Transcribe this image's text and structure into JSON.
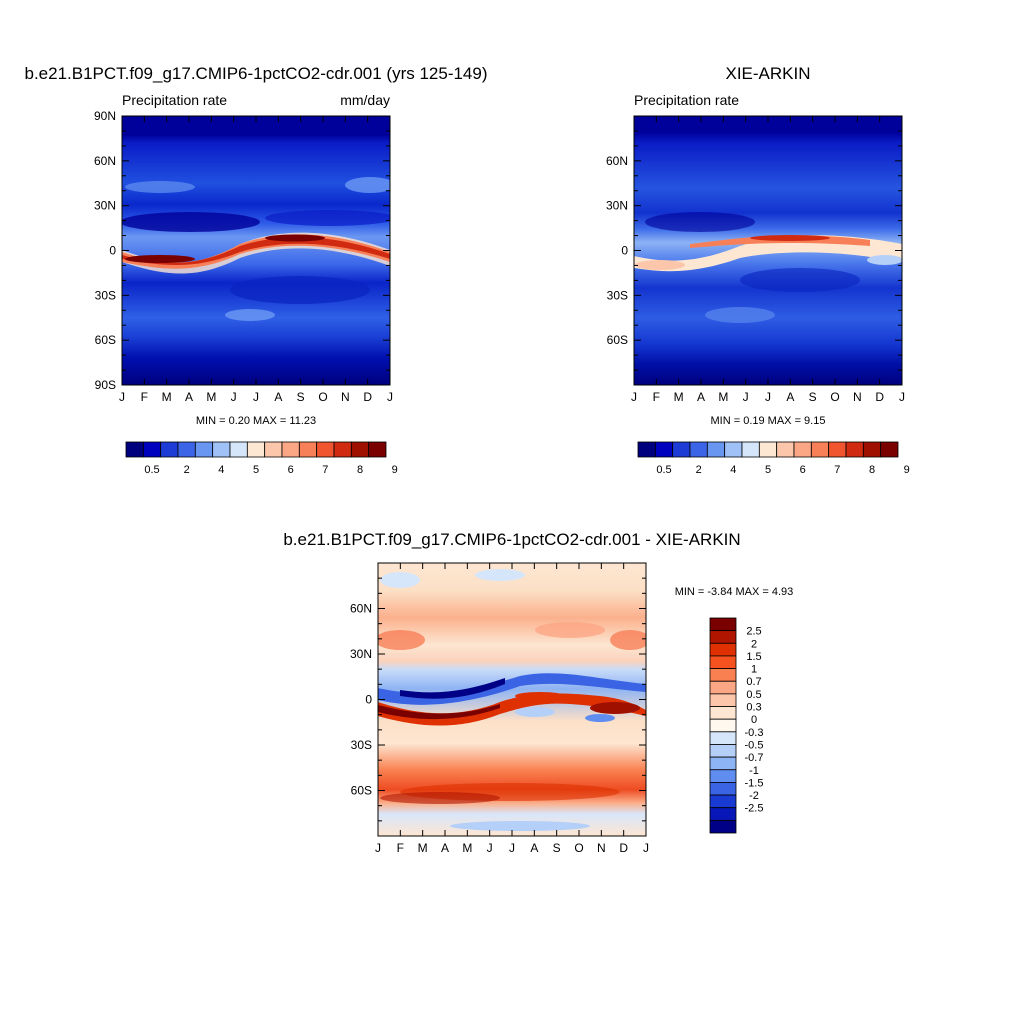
{
  "panels": [
    {
      "id": "model",
      "title": "b.e21.B1PCT.f09_g17.CMIP6-1pctCO2-cdr.001 (yrs 125-149)",
      "left_label": "Precipitation rate",
      "right_label": "mm/day",
      "stats": "MIN =   0.20 MAX =  11.23"
    },
    {
      "id": "obs",
      "title": "XIE-ARKIN",
      "left_label": "Precipitation rate",
      "right_label": "",
      "stats": "MIN =   0.19 MAX =   9.15"
    },
    {
      "id": "diff",
      "title": "b.e21.B1PCT.f09_g17.CMIP6-1pctCO2-cdr.001 - XIE-ARKIN",
      "left_label": "",
      "right_label": "",
      "stats": "MIN =  -3.84 MAX =   4.93"
    }
  ],
  "chart_data": [
    {
      "type": "heatmap",
      "panel": "model",
      "title": "b.e21.B1PCT.f09_g17.CMIP6-1pctCO2-cdr.001 (yrs 125-149)",
      "variable": "Precipitation rate",
      "units": "mm/day",
      "x_ticks": [
        "J",
        "F",
        "M",
        "A",
        "M",
        "J",
        "J",
        "A",
        "S",
        "O",
        "N",
        "D",
        "J"
      ],
      "y_ticks": [
        "90N",
        "60N",
        "30N",
        "0",
        "30S",
        "60S",
        "90S"
      ],
      "y_tick_values": [
        90,
        60,
        30,
        0,
        -30,
        -60,
        -90
      ],
      "ylim": [
        -90,
        90
      ],
      "min": 0.2,
      "max": 11.23,
      "colorbar": {
        "orientation": "horizontal",
        "tick_labels": [
          "0.5",
          "2",
          "4",
          "5",
          "6",
          "7",
          "8",
          "9"
        ],
        "colors": [
          "#00007f",
          "#0000bf",
          "#1c3cd5",
          "#3c64e6",
          "#6996f0",
          "#a0c0f8",
          "#d6e6fa",
          "#fde6d2",
          "#fcc6aa",
          "#fba684",
          "#f88058",
          "#f05530",
          "#d02a10",
          "#a01000",
          "#7a0000"
        ]
      }
    },
    {
      "type": "heatmap",
      "panel": "obs",
      "title": "XIE-ARKIN",
      "variable": "Precipitation rate",
      "x_ticks": [
        "J",
        "F",
        "M",
        "A",
        "M",
        "J",
        "J",
        "A",
        "S",
        "O",
        "N",
        "D",
        "J"
      ],
      "y_ticks": [
        "60N",
        "30N",
        "0",
        "30S",
        "60S"
      ],
      "y_tick_values": [
        60,
        30,
        0,
        -30,
        -60
      ],
      "ylim": [
        -90,
        90
      ],
      "min": 0.19,
      "max": 9.15,
      "colorbar": {
        "orientation": "horizontal",
        "tick_labels": [
          "0.5",
          "2",
          "4",
          "5",
          "6",
          "7",
          "8",
          "9"
        ],
        "colors": [
          "#00007f",
          "#0000bf",
          "#1c3cd5",
          "#3c64e6",
          "#6996f0",
          "#a0c0f8",
          "#d6e6fa",
          "#fde6d2",
          "#fcc6aa",
          "#fba684",
          "#f88058",
          "#f05530",
          "#d02a10",
          "#a01000",
          "#7a0000"
        ]
      }
    },
    {
      "type": "heatmap",
      "panel": "diff",
      "title": "b.e21.B1PCT.f09_g17.CMIP6-1pctCO2-cdr.001 - XIE-ARKIN",
      "x_ticks": [
        "J",
        "F",
        "M",
        "A",
        "M",
        "J",
        "J",
        "A",
        "S",
        "O",
        "N",
        "D",
        "J"
      ],
      "y_ticks": [
        "60N",
        "30N",
        "0",
        "30S",
        "60S"
      ],
      "y_tick_values": [
        60,
        30,
        0,
        -30,
        -60
      ],
      "ylim": [
        -90,
        90
      ],
      "min": -3.84,
      "max": 4.93,
      "colorbar": {
        "orientation": "vertical",
        "tick_labels": [
          "2.5",
          "2",
          "1.5",
          "1",
          "0.7",
          "0.5",
          "0.3",
          "0",
          "-0.3",
          "-0.5",
          "-0.7",
          "-1",
          "-1.5",
          "-2",
          "-2.5"
        ],
        "colors": [
          "#7a0000",
          "#b01500",
          "#de3000",
          "#f55220",
          "#f98050",
          "#fba684",
          "#fcc6aa",
          "#fde6d2",
          "#fff8ef",
          "#d6e6fa",
          "#b4cff8",
          "#8db4f4",
          "#5f8ef0",
          "#3a64e4",
          "#1a3ad4",
          "#0818b8",
          "#000087"
        ]
      }
    }
  ]
}
